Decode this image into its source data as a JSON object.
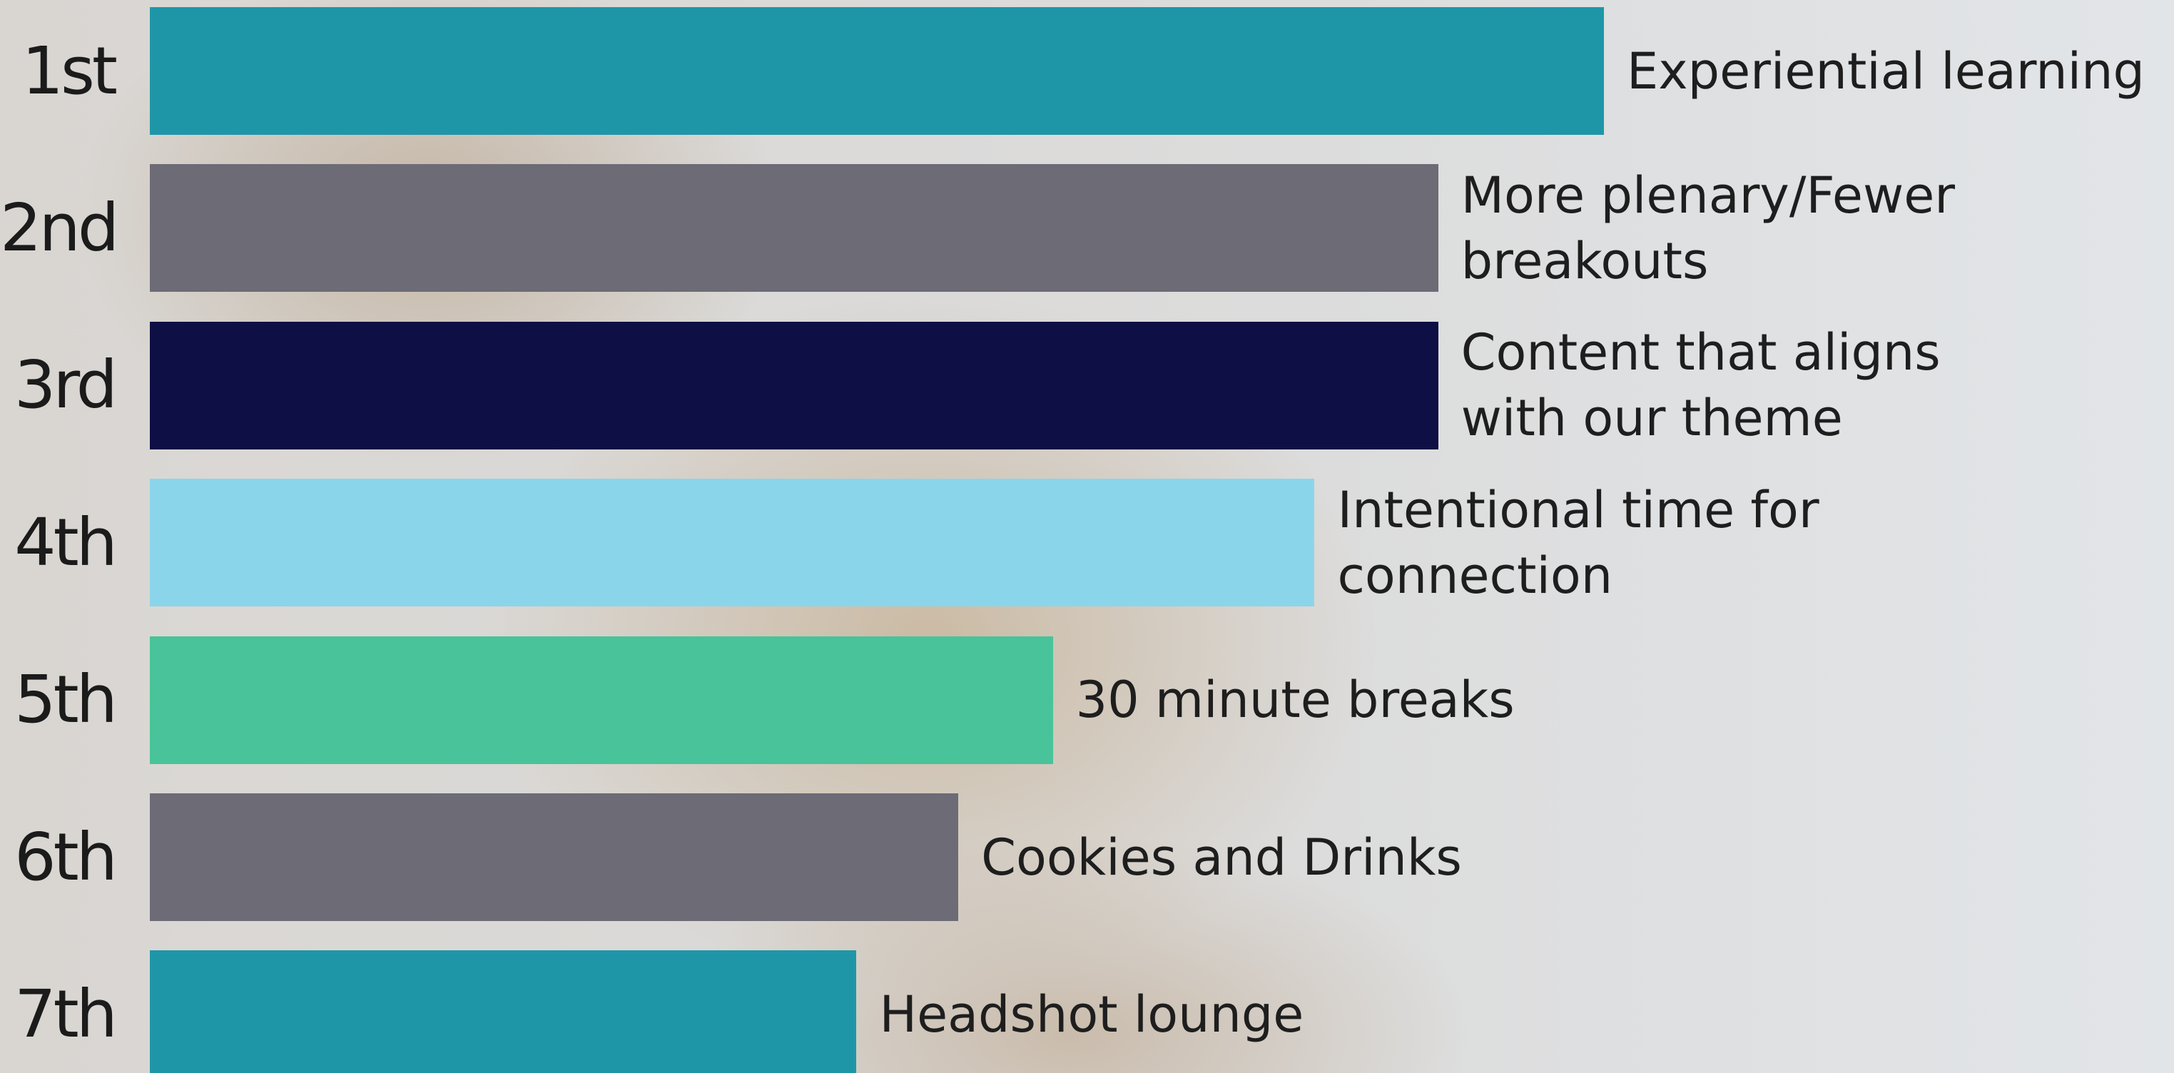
{
  "chart_data": {
    "type": "bar",
    "orientation": "horizontal",
    "categories": [
      "1st",
      "2nd",
      "3rd",
      "4th",
      "5th",
      "6th",
      "7th"
    ],
    "labels": [
      "Experiential learning",
      "More plenary/Fewer breakouts",
      "Content that aligns with our theme",
      "Intentional time for connection",
      "30 minute breaks",
      "Cookies and Drinks",
      "Headshot lounge"
    ],
    "values": [
      100,
      88.6,
      88.6,
      80.1,
      62.1,
      55.6,
      48.6
    ],
    "colors": [
      "#1f96a8",
      "#6c6b76",
      "#0e0f44",
      "#8bd5ea",
      "#48c39a",
      "#6c6b76",
      "#1f96a8"
    ],
    "xlim": [
      0,
      100
    ]
  }
}
